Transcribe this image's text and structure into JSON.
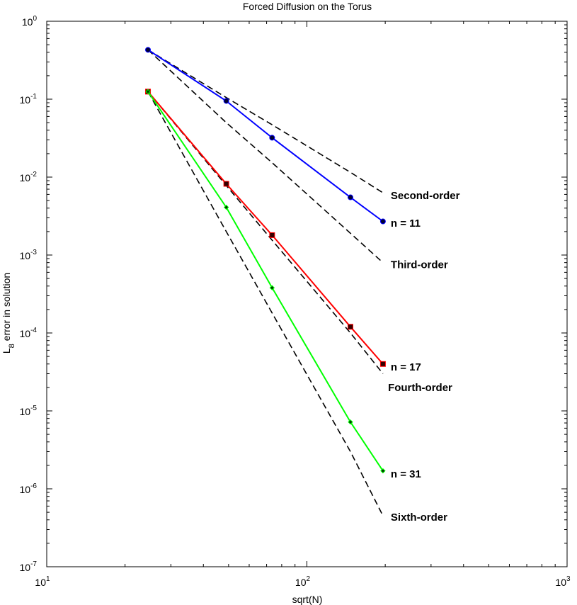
{
  "chart_data": {
    "type": "line",
    "title": "Forced Diffusion on the Torus",
    "xlabel": "sqrt(N)",
    "ylabel_main": "L",
    "ylabel_sub": "8",
    "ylabel_rest": " error in solution",
    "xscale": "log",
    "yscale": "log",
    "xlim": [
      10,
      1000
    ],
    "ylim": [
      1e-07,
      1
    ],
    "grid": false,
    "xticks": [
      {
        "value": 10,
        "base": "10",
        "exp": "1"
      },
      {
        "value": 100,
        "base": "10",
        "exp": "2"
      },
      {
        "value": 1000,
        "base": "10",
        "exp": "3"
      }
    ],
    "yticks": [
      {
        "value": 1,
        "base": "10",
        "exp": "0"
      },
      {
        "value": 0.1,
        "base": "10",
        "exp": "-1"
      },
      {
        "value": 0.01,
        "base": "10",
        "exp": "-2"
      },
      {
        "value": 0.001,
        "base": "10",
        "exp": "-3"
      },
      {
        "value": 0.0001,
        "base": "10",
        "exp": "-4"
      },
      {
        "value": 1e-05,
        "base": "10",
        "exp": "-5"
      },
      {
        "value": 1e-06,
        "base": "10",
        "exp": "-6"
      },
      {
        "value": 1e-07,
        "base": "10",
        "exp": "-7"
      }
    ],
    "series": [
      {
        "label": "n = 11",
        "color": "#0000ff",
        "marker": "circle",
        "x": [
          24.5,
          49,
          73.5,
          147,
          196
        ],
        "y": [
          0.43,
          0.095,
          0.032,
          0.0055,
          0.0027
        ]
      },
      {
        "label": "n = 17",
        "color": "#ff0000",
        "marker": "square",
        "x": [
          24.5,
          49,
          73.5,
          147,
          196
        ],
        "y": [
          0.125,
          0.0082,
          0.0018,
          0.00012,
          4e-05
        ]
      },
      {
        "label": "n = 31",
        "color": "#00ff00",
        "marker": "diamond",
        "x": [
          24.5,
          49,
          73.5,
          147,
          196
        ],
        "y": [
          0.125,
          0.0041,
          0.00038,
          7.2e-06,
          1.7e-06
        ]
      }
    ],
    "reference_lines": [
      {
        "label": "Second-order",
        "color": "#000000",
        "dash": true,
        "x": [
          24.5,
          49,
          73.5,
          147,
          196
        ],
        "y": [
          0.43,
          0.105,
          0.047,
          0.0115,
          0.0063
        ]
      },
      {
        "label": "Third-order",
        "color": "#000000",
        "dash": true,
        "x": [
          24.5,
          49,
          73.5,
          147,
          196
        ],
        "y": [
          0.43,
          0.05,
          0.0153,
          0.0019,
          0.0008
        ]
      },
      {
        "label": "Fourth-order",
        "color": "#000000",
        "dash": true,
        "x": [
          24.5,
          49,
          73.5,
          147,
          196
        ],
        "y": [
          0.125,
          0.0078,
          0.00155,
          0.0001,
          3e-05
        ]
      },
      {
        "label": "Sixth-order",
        "color": "#000000",
        "dash": true,
        "x": [
          24.5,
          49,
          73.5,
          147,
          196
        ],
        "y": [
          0.125,
          0.002,
          0.00018,
          3e-06,
          4.5e-07
        ]
      }
    ],
    "annotations": [
      {
        "text": "Second-order",
        "x": 210,
        "y": 0.0052
      },
      {
        "text": "n = 11",
        "x": 210,
        "y": 0.0023
      },
      {
        "text": "Third-order",
        "x": 210,
        "y": 0.00068
      },
      {
        "text": "n = 17",
        "x": 210,
        "y": 3.3e-05
      },
      {
        "text": "Fourth-order",
        "x": 205,
        "y": 1.8e-05
      },
      {
        "text": "n = 31",
        "x": 210,
        "y": 1.4e-06
      },
      {
        "text": "Sixth-order",
        "x": 210,
        "y": 3.9e-07
      }
    ]
  }
}
